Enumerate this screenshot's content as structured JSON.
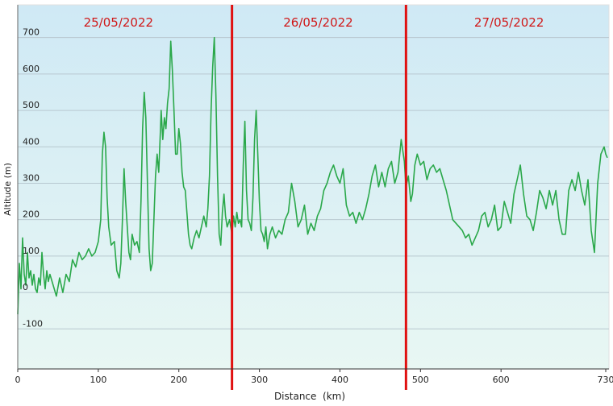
{
  "chart_data": {
    "type": "line",
    "title": "",
    "xlabel": "Distance  (km)",
    "ylabel": "Altitude (m)",
    "xlim": [
      0,
      734
    ],
    "ylim": [
      -210,
      790
    ],
    "grid": true,
    "x_ticks": [
      0,
      100,
      200,
      300,
      400,
      500,
      600,
      730
    ],
    "y_ticks": [
      -100,
      0,
      100,
      200,
      300,
      400,
      500,
      600,
      700
    ],
    "line_color": "#2aa84a",
    "divider_color": "#e01010",
    "bg_top_color": "#cfe9f5",
    "bg_bottom_color": "#e8f7f3",
    "day_dividers": [
      {
        "x": 266,
        "label": "25/05/2022"
      },
      {
        "x": 482,
        "label": "26/05/2022"
      }
    ],
    "day_labels": [
      {
        "label": "25/05/2022",
        "x_center": 125
      },
      {
        "label": "26/05/2022",
        "x_center": 373
      },
      {
        "label": "27/05/2022",
        "x_center": 610
      }
    ],
    "series": [
      {
        "values": [
          [
            0,
            -60
          ],
          [
            2,
            80
          ],
          [
            4,
            10
          ],
          [
            6,
            150
          ],
          [
            8,
            50
          ],
          [
            10,
            20
          ],
          [
            12,
            110
          ],
          [
            14,
            40
          ],
          [
            16,
            60
          ],
          [
            18,
            20
          ],
          [
            20,
            50
          ],
          [
            22,
            10
          ],
          [
            24,
            0
          ],
          [
            26,
            40
          ],
          [
            28,
            20
          ],
          [
            30,
            110
          ],
          [
            32,
            50
          ],
          [
            34,
            10
          ],
          [
            36,
            60
          ],
          [
            38,
            30
          ],
          [
            40,
            50
          ],
          [
            44,
            20
          ],
          [
            48,
            -10
          ],
          [
            52,
            40
          ],
          [
            56,
            0
          ],
          [
            60,
            50
          ],
          [
            64,
            30
          ],
          [
            68,
            90
          ],
          [
            72,
            70
          ],
          [
            76,
            110
          ],
          [
            80,
            90
          ],
          [
            84,
            100
          ],
          [
            88,
            120
          ],
          [
            92,
            100
          ],
          [
            96,
            110
          ],
          [
            100,
            140
          ],
          [
            103,
            200
          ],
          [
            105,
            380
          ],
          [
            107,
            440
          ],
          [
            109,
            400
          ],
          [
            111,
            260
          ],
          [
            113,
            180
          ],
          [
            116,
            130
          ],
          [
            120,
            140
          ],
          [
            123,
            60
          ],
          [
            126,
            40
          ],
          [
            128,
            80
          ],
          [
            130,
            200
          ],
          [
            132,
            340
          ],
          [
            134,
            250
          ],
          [
            136,
            180
          ],
          [
            138,
            110
          ],
          [
            140,
            90
          ],
          [
            142,
            160
          ],
          [
            145,
            130
          ],
          [
            148,
            140
          ],
          [
            151,
            110
          ],
          [
            153,
            250
          ],
          [
            155,
            450
          ],
          [
            157,
            550
          ],
          [
            159,
            480
          ],
          [
            161,
            300
          ],
          [
            163,
            120
          ],
          [
            165,
            60
          ],
          [
            167,
            80
          ],
          [
            169,
            200
          ],
          [
            171,
            320
          ],
          [
            173,
            380
          ],
          [
            175,
            330
          ],
          [
            177,
            440
          ],
          [
            178,
            500
          ],
          [
            180,
            420
          ],
          [
            182,
            480
          ],
          [
            184,
            450
          ],
          [
            186,
            520
          ],
          [
            188,
            560
          ],
          [
            190,
            690
          ],
          [
            192,
            610
          ],
          [
            194,
            500
          ],
          [
            196,
            380
          ],
          [
            198,
            380
          ],
          [
            200,
            450
          ],
          [
            202,
            410
          ],
          [
            204,
            330
          ],
          [
            206,
            290
          ],
          [
            208,
            280
          ],
          [
            210,
            220
          ],
          [
            212,
            160
          ],
          [
            214,
            130
          ],
          [
            216,
            120
          ],
          [
            219,
            150
          ],
          [
            222,
            170
          ],
          [
            225,
            150
          ],
          [
            228,
            180
          ],
          [
            231,
            210
          ],
          [
            234,
            180
          ],
          [
            236,
            230
          ],
          [
            238,
            320
          ],
          [
            240,
            500
          ],
          [
            242,
            620
          ],
          [
            244,
            700
          ],
          [
            246,
            540
          ],
          [
            248,
            320
          ],
          [
            250,
            160
          ],
          [
            252,
            130
          ],
          [
            254,
            220
          ],
          [
            256,
            270
          ],
          [
            258,
            210
          ],
          [
            260,
            180
          ],
          [
            263,
            200
          ],
          [
            266,
            160
          ],
          [
            268,
            210
          ],
          [
            270,
            180
          ],
          [
            272,
            220
          ],
          [
            274,
            190
          ],
          [
            276,
            200
          ],
          [
            278,
            180
          ],
          [
            280,
            350
          ],
          [
            282,
            470
          ],
          [
            284,
            280
          ],
          [
            286,
            200
          ],
          [
            288,
            190
          ],
          [
            290,
            170
          ],
          [
            292,
            260
          ],
          [
            294,
            420
          ],
          [
            296,
            500
          ],
          [
            298,
            380
          ],
          [
            300,
            250
          ],
          [
            302,
            170
          ],
          [
            304,
            160
          ],
          [
            306,
            140
          ],
          [
            308,
            180
          ],
          [
            310,
            120
          ],
          [
            313,
            160
          ],
          [
            316,
            180
          ],
          [
            320,
            150
          ],
          [
            324,
            170
          ],
          [
            328,
            160
          ],
          [
            332,
            200
          ],
          [
            336,
            220
          ],
          [
            340,
            300
          ],
          [
            344,
            250
          ],
          [
            348,
            180
          ],
          [
            352,
            200
          ],
          [
            356,
            240
          ],
          [
            360,
            160
          ],
          [
            364,
            190
          ],
          [
            368,
            170
          ],
          [
            372,
            210
          ],
          [
            376,
            230
          ],
          [
            380,
            280
          ],
          [
            384,
            300
          ],
          [
            388,
            330
          ],
          [
            392,
            350
          ],
          [
            396,
            320
          ],
          [
            400,
            300
          ],
          [
            404,
            340
          ],
          [
            408,
            240
          ],
          [
            412,
            210
          ],
          [
            416,
            220
          ],
          [
            420,
            190
          ],
          [
            424,
            220
          ],
          [
            428,
            200
          ],
          [
            432,
            230
          ],
          [
            436,
            270
          ],
          [
            440,
            320
          ],
          [
            444,
            350
          ],
          [
            448,
            290
          ],
          [
            452,
            330
          ],
          [
            456,
            290
          ],
          [
            460,
            340
          ],
          [
            464,
            360
          ],
          [
            468,
            300
          ],
          [
            472,
            330
          ],
          [
            476,
            420
          ],
          [
            480,
            360
          ],
          [
            482,
            290
          ],
          [
            485,
            320
          ],
          [
            488,
            250
          ],
          [
            490,
            270
          ],
          [
            493,
            350
          ],
          [
            496,
            380
          ],
          [
            500,
            350
          ],
          [
            504,
            360
          ],
          [
            508,
            310
          ],
          [
            512,
            340
          ],
          [
            516,
            350
          ],
          [
            520,
            330
          ],
          [
            524,
            340
          ],
          [
            528,
            310
          ],
          [
            532,
            280
          ],
          [
            536,
            240
          ],
          [
            540,
            200
          ],
          [
            544,
            190
          ],
          [
            548,
            180
          ],
          [
            552,
            170
          ],
          [
            556,
            150
          ],
          [
            560,
            160
          ],
          [
            564,
            130
          ],
          [
            568,
            150
          ],
          [
            572,
            170
          ],
          [
            576,
            210
          ],
          [
            580,
            220
          ],
          [
            584,
            180
          ],
          [
            588,
            200
          ],
          [
            592,
            240
          ],
          [
            596,
            170
          ],
          [
            600,
            180
          ],
          [
            604,
            250
          ],
          [
            608,
            220
          ],
          [
            612,
            190
          ],
          [
            616,
            270
          ],
          [
            620,
            310
          ],
          [
            624,
            350
          ],
          [
            628,
            270
          ],
          [
            632,
            210
          ],
          [
            636,
            200
          ],
          [
            640,
            170
          ],
          [
            644,
            220
          ],
          [
            648,
            280
          ],
          [
            652,
            260
          ],
          [
            656,
            230
          ],
          [
            660,
            280
          ],
          [
            664,
            240
          ],
          [
            668,
            280
          ],
          [
            672,
            200
          ],
          [
            676,
            160
          ],
          [
            680,
            160
          ],
          [
            684,
            280
          ],
          [
            688,
            310
          ],
          [
            692,
            280
          ],
          [
            696,
            330
          ],
          [
            700,
            280
          ],
          [
            704,
            240
          ],
          [
            708,
            310
          ],
          [
            712,
            170
          ],
          [
            716,
            110
          ],
          [
            720,
            300
          ],
          [
            724,
            380
          ],
          [
            728,
            400
          ],
          [
            730,
            380
          ],
          [
            732,
            370
          ]
        ]
      }
    ]
  }
}
